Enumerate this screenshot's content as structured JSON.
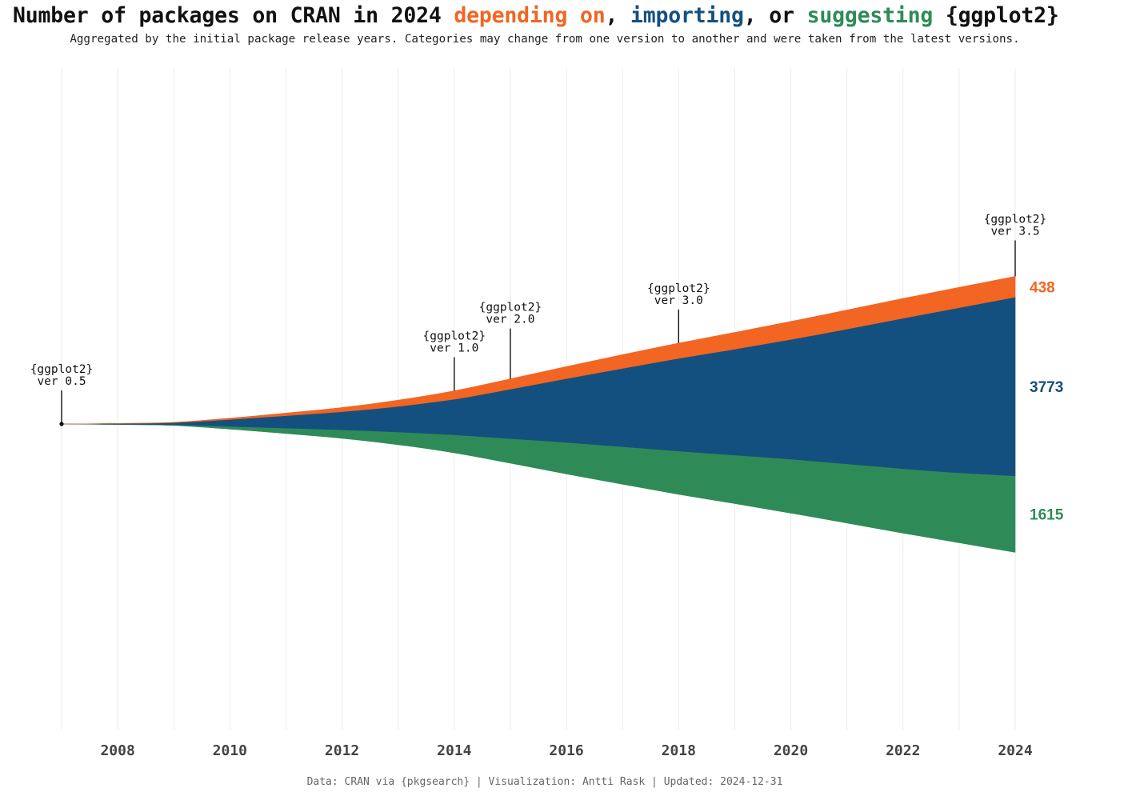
{
  "title": {
    "part1": "Number of packages on CRAN in 2024 ",
    "depending": "depending on",
    "sep1": ", ",
    "importing": "importing",
    "sep2": ", or ",
    "suggesting": "suggesting",
    "part2": " {ggplot2}"
  },
  "subtitle": "Aggregated by the initial package release years. Categories may change from one version to another and were taken from the latest versions.",
  "caption": "Data: CRAN via {pkgsearch} | Visualization: Antti Rask | Updated: 2024-12-31",
  "colors": {
    "depending": "#f26522",
    "importing": "#14507f",
    "suggesting": "#2e8b57",
    "grid": "#ebebeb",
    "tick": "#444444"
  },
  "chart_data": {
    "type": "area",
    "layout": "streamgraph",
    "x": [
      2007,
      2008,
      2009,
      2010,
      2011,
      2012,
      2013,
      2014,
      2015,
      2016,
      2017,
      2018,
      2019,
      2020,
      2021,
      2022,
      2023,
      2024
    ],
    "series": [
      {
        "name": "depending on",
        "end_label": "438",
        "values": [
          0,
          2,
          7,
          28,
          55,
          87,
          131,
          177,
          216,
          254,
          290,
          323,
          353,
          380,
          402,
          418,
          430,
          438
        ]
      },
      {
        "name": "importing",
        "end_label": "3773",
        "values": [
          0,
          16,
          43,
          145,
          262,
          381,
          541,
          753,
          1043,
          1348,
          1652,
          1956,
          2236,
          2528,
          2846,
          3175,
          3486,
          3773
        ]
      },
      {
        "name": "suggesting",
        "end_label": "1615",
        "values": [
          0,
          4,
          16,
          58,
          114,
          181,
          269,
          381,
          521,
          666,
          794,
          913,
          1026,
          1139,
          1251,
          1362,
          1477,
          1615
        ]
      }
    ],
    "xticks": [
      "2008",
      "2010",
      "2012",
      "2014",
      "2016",
      "2018",
      "2020",
      "2022",
      "2024"
    ],
    "annotations": [
      {
        "x": 2007,
        "line1": "{ggplot2}",
        "line2": "ver 0.5"
      },
      {
        "x": 2014,
        "line1": "{ggplot2}",
        "line2": "ver 1.0"
      },
      {
        "x": 2015,
        "line1": "{ggplot2}",
        "line2": "ver 2.0"
      },
      {
        "x": 2018,
        "line1": "{ggplot2}",
        "line2": "ver 3.0"
      },
      {
        "x": 2024,
        "line1": "{ggplot2}",
        "line2": "ver 3.5"
      }
    ],
    "grid": true,
    "legend": "none"
  }
}
